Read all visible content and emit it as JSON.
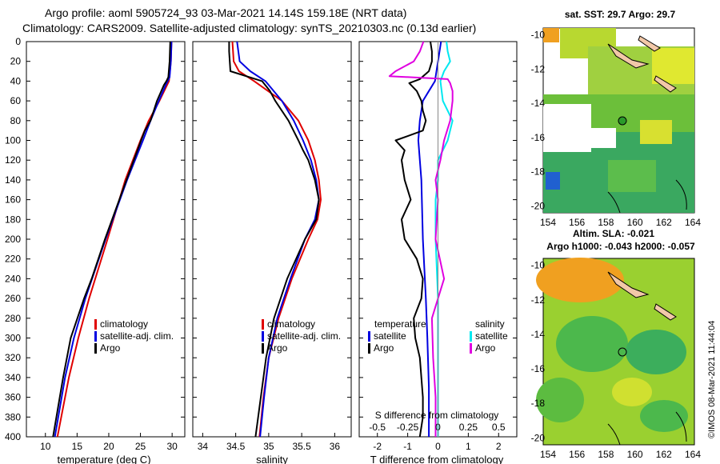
{
  "header": {
    "line1": "Argo profile: aoml 5905724_93 03-Mar-2021 14.14S 159.18E (NRT data)",
    "line2": "Climatology: CARS2009. Satellite-adjusted climatology: synTS_20210303.nc (0.13d earlier)"
  },
  "colors": {
    "climatology": "#e00000",
    "satellite": "#0000e0",
    "argo": "#000000",
    "sal_sat": "#00e8f0",
    "sal_argo": "#e000e0"
  },
  "depth_axis": {
    "ticks": [
      0,
      20,
      40,
      60,
      80,
      100,
      120,
      140,
      160,
      180,
      200,
      220,
      240,
      260,
      280,
      300,
      320,
      340,
      360,
      380,
      400
    ]
  },
  "chart_data": [
    {
      "type": "line",
      "title": "temperature",
      "xlabel": "temperature (deg C)",
      "ylabel": "depth",
      "xlim": [
        7,
        32
      ],
      "ylim": [
        400,
        0
      ],
      "xticks": [
        "10",
        "15",
        "20",
        "25",
        "30"
      ],
      "xtick_values": [
        10,
        15,
        20,
        25,
        30
      ],
      "legend": [
        "climatology",
        "satellite-adj. clim.",
        "Argo"
      ],
      "series": [
        {
          "name": "climatology",
          "depth": [
            0,
            20,
            40,
            60,
            80,
            100,
            140,
            200,
            260,
            300,
            340,
            400
          ],
          "values": [
            29.9,
            29.8,
            29.5,
            28.0,
            26.3,
            25.0,
            22.6,
            19.8,
            16.9,
            15.2,
            13.7,
            11.9
          ]
        },
        {
          "name": "satellite-adj. clim.",
          "depth": [
            0,
            20,
            36,
            44,
            60,
            80,
            100,
            140,
            200,
            260,
            300,
            340,
            400
          ],
          "values": [
            29.9,
            29.8,
            29.6,
            29.0,
            27.9,
            26.6,
            25.4,
            22.9,
            19.5,
            16.3,
            14.5,
            13.1,
            11.5
          ]
        },
        {
          "name": "Argo",
          "depth": [
            0,
            20,
            36,
            40,
            44,
            60,
            80,
            90,
            100,
            140,
            200,
            240,
            260,
            300,
            340,
            400
          ],
          "values": [
            29.7,
            29.6,
            29.4,
            29.1,
            28.7,
            27.6,
            26.6,
            25.7,
            25.1,
            22.8,
            19.4,
            17.3,
            16.1,
            14.0,
            12.8,
            11.2
          ]
        }
      ]
    },
    {
      "type": "line",
      "title": "salinity",
      "xlabel": "salinity",
      "ylabel": "depth",
      "xlim": [
        33.85,
        36.25
      ],
      "ylim": [
        400,
        0
      ],
      "xticks": [
        "34",
        "34.5",
        "35",
        "35.5",
        "36"
      ],
      "xtick_values": [
        34,
        34.5,
        35,
        35.5,
        36
      ],
      "legend": [
        "climatology",
        "satellite-adj. clim.",
        "Argo"
      ],
      "series": [
        {
          "name": "climatology",
          "depth": [
            0,
            20,
            30,
            40,
            60,
            80,
            100,
            120,
            140,
            160,
            180,
            200,
            240,
            280,
            320,
            360,
            400
          ],
          "values": [
            34.45,
            34.47,
            34.55,
            34.78,
            35.2,
            35.45,
            35.6,
            35.7,
            35.76,
            35.79,
            35.74,
            35.6,
            35.35,
            35.15,
            35.0,
            34.92,
            34.86
          ]
        },
        {
          "name": "satellite-adj. clim.",
          "depth": [
            0,
            20,
            30,
            40,
            60,
            80,
            100,
            120,
            140,
            160,
            180,
            200,
            240,
            280,
            320,
            360,
            400
          ],
          "values": [
            34.52,
            34.56,
            34.72,
            34.95,
            35.2,
            35.38,
            35.52,
            35.64,
            35.72,
            35.76,
            35.7,
            35.55,
            35.33,
            35.13,
            35.0,
            34.93,
            34.87
          ]
        },
        {
          "name": "Argo",
          "depth": [
            0,
            10,
            20,
            30,
            40,
            50,
            60,
            80,
            100,
            110,
            120,
            140,
            160,
            180,
            200,
            240,
            280,
            320,
            360,
            400
          ],
          "values": [
            34.4,
            34.4,
            34.41,
            34.42,
            34.9,
            35.02,
            35.1,
            35.3,
            35.45,
            35.52,
            35.6,
            35.7,
            35.76,
            35.72,
            35.55,
            35.28,
            35.08,
            34.96,
            34.88,
            34.8
          ]
        }
      ]
    },
    {
      "type": "line",
      "title": "difference from climatology",
      "xlabel": "T difference from climatology",
      "ylabel": "depth",
      "xlim": [
        -2.6,
        2.6
      ],
      "ylim": [
        400,
        0
      ],
      "xticks": [
        "-2",
        "-1",
        "0",
        "1",
        "2"
      ],
      "xtick_values": [
        -2,
        -1,
        0,
        1,
        2
      ],
      "top_axis": {
        "label": "S difference from climatology",
        "ticks": [
          "-0.5",
          "-0.25",
          "0",
          "0.25",
          "0.5"
        ],
        "tick_values": [
          -0.5,
          -0.25,
          0,
          0.25,
          0.5
        ]
      },
      "legend_left": {
        "title": "temperature",
        "items": [
          "satellite",
          "Argo"
        ]
      },
      "legend_right": {
        "title": "salinity",
        "items": [
          "satellite",
          "Argo"
        ]
      },
      "series": [
        {
          "name": "temperature satellite",
          "depth": [
            0,
            10,
            20,
            30,
            40,
            50,
            60,
            80,
            100,
            140,
            200,
            260,
            300,
            350,
            400
          ],
          "values": [
            0.1,
            0.05,
            0.0,
            -0.05,
            -0.1,
            -0.3,
            -0.5,
            -0.6,
            -0.65,
            -0.55,
            -0.5,
            -0.4,
            -0.35,
            -0.3,
            -0.3
          ]
        },
        {
          "name": "temperature Argo",
          "depth": [
            0,
            10,
            20,
            30,
            38,
            42,
            50,
            60,
            70,
            80,
            90,
            100,
            110,
            120,
            140,
            160,
            180,
            200,
            220,
            240,
            260,
            280,
            300,
            320,
            340,
            360,
            380,
            400
          ],
          "values": [
            -0.25,
            -0.2,
            -0.2,
            -0.3,
            -0.6,
            -0.95,
            -0.7,
            -0.55,
            -0.5,
            -0.4,
            -0.5,
            -1.4,
            -1.1,
            -1.2,
            -1.1,
            -0.9,
            -1.2,
            -1.1,
            -0.7,
            -0.5,
            -0.55,
            -0.8,
            -0.75,
            -0.6,
            -0.55,
            -0.5,
            -0.5,
            -0.6
          ]
        },
        {
          "name": "salinity satellite",
          "depth": [
            0,
            10,
            20,
            30,
            40,
            60,
            80,
            100,
            120,
            140,
            160,
            200,
            260,
            320,
            400
          ],
          "values": [
            0.07,
            0.08,
            0.1,
            0.05,
            0.02,
            0.04,
            0.12,
            0.08,
            0.0,
            0.0,
            -0.02,
            -0.02,
            0.0,
            0.0,
            0.0
          ]
        },
        {
          "name": "salinity Argo",
          "depth": [
            0,
            10,
            20,
            30,
            35,
            38,
            42,
            50,
            60,
            80,
            100,
            120,
            140,
            160,
            200,
            240,
            280,
            320,
            360,
            400
          ],
          "values": [
            -0.12,
            -0.15,
            -0.2,
            -0.35,
            -0.4,
            0.08,
            0.1,
            0.12,
            0.12,
            0.1,
            0.05,
            0.02,
            -0.02,
            0.0,
            -0.02,
            0.05,
            -0.05,
            -0.04,
            -0.02,
            -0.02
          ]
        }
      ]
    }
  ],
  "maps": {
    "top": {
      "title": "sat. SST: 29.7 Argo: 29.7",
      "xticks": [
        "154",
        "156",
        "158",
        "160",
        "162",
        "164"
      ],
      "yticks": [
        "-10",
        "-12",
        "-14",
        "-16",
        "-18",
        "-20"
      ]
    },
    "bottom": {
      "title1": "Altim. SLA: -0.021",
      "title2": "Argo h1000: -0.043 h2000: -0.057",
      "xticks": [
        "154",
        "156",
        "158",
        "160",
        "162",
        "164"
      ],
      "yticks": [
        "-10",
        "-12",
        "-14",
        "-16",
        "-18",
        "-20"
      ]
    }
  },
  "credit": "©IMOS 08-Mar-2021 11:44:04"
}
